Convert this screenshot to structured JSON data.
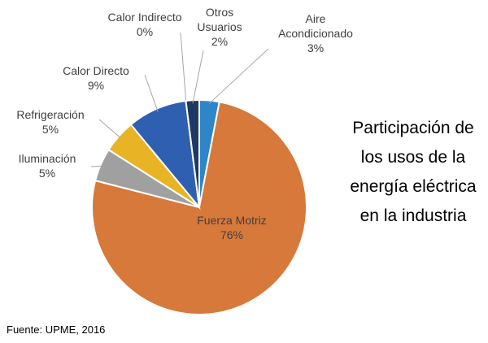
{
  "chart_data": {
    "type": "pie",
    "title": "Participación de los usos de la energía eléctrica en la industria",
    "source": "Fuente: UPME, 2016",
    "categories": [
      "Aire Acondicionado",
      "Fuerza Motriz",
      "Iluminación",
      "Refrigeración",
      "Calor Directo",
      "Calor Indirecto",
      "Otros Usuarios"
    ],
    "values": [
      3,
      76,
      5,
      5,
      9,
      0,
      2
    ],
    "value_labels": [
      "3%",
      "76%",
      "5%",
      "5%",
      "9%",
      "0%",
      "2%"
    ],
    "colors": [
      "#2e86c8",
      "#d7793a",
      "#a0a0a0",
      "#e8b425",
      "#2f5fb0",
      "#dbe4f0",
      "#1f3864"
    ]
  }
}
